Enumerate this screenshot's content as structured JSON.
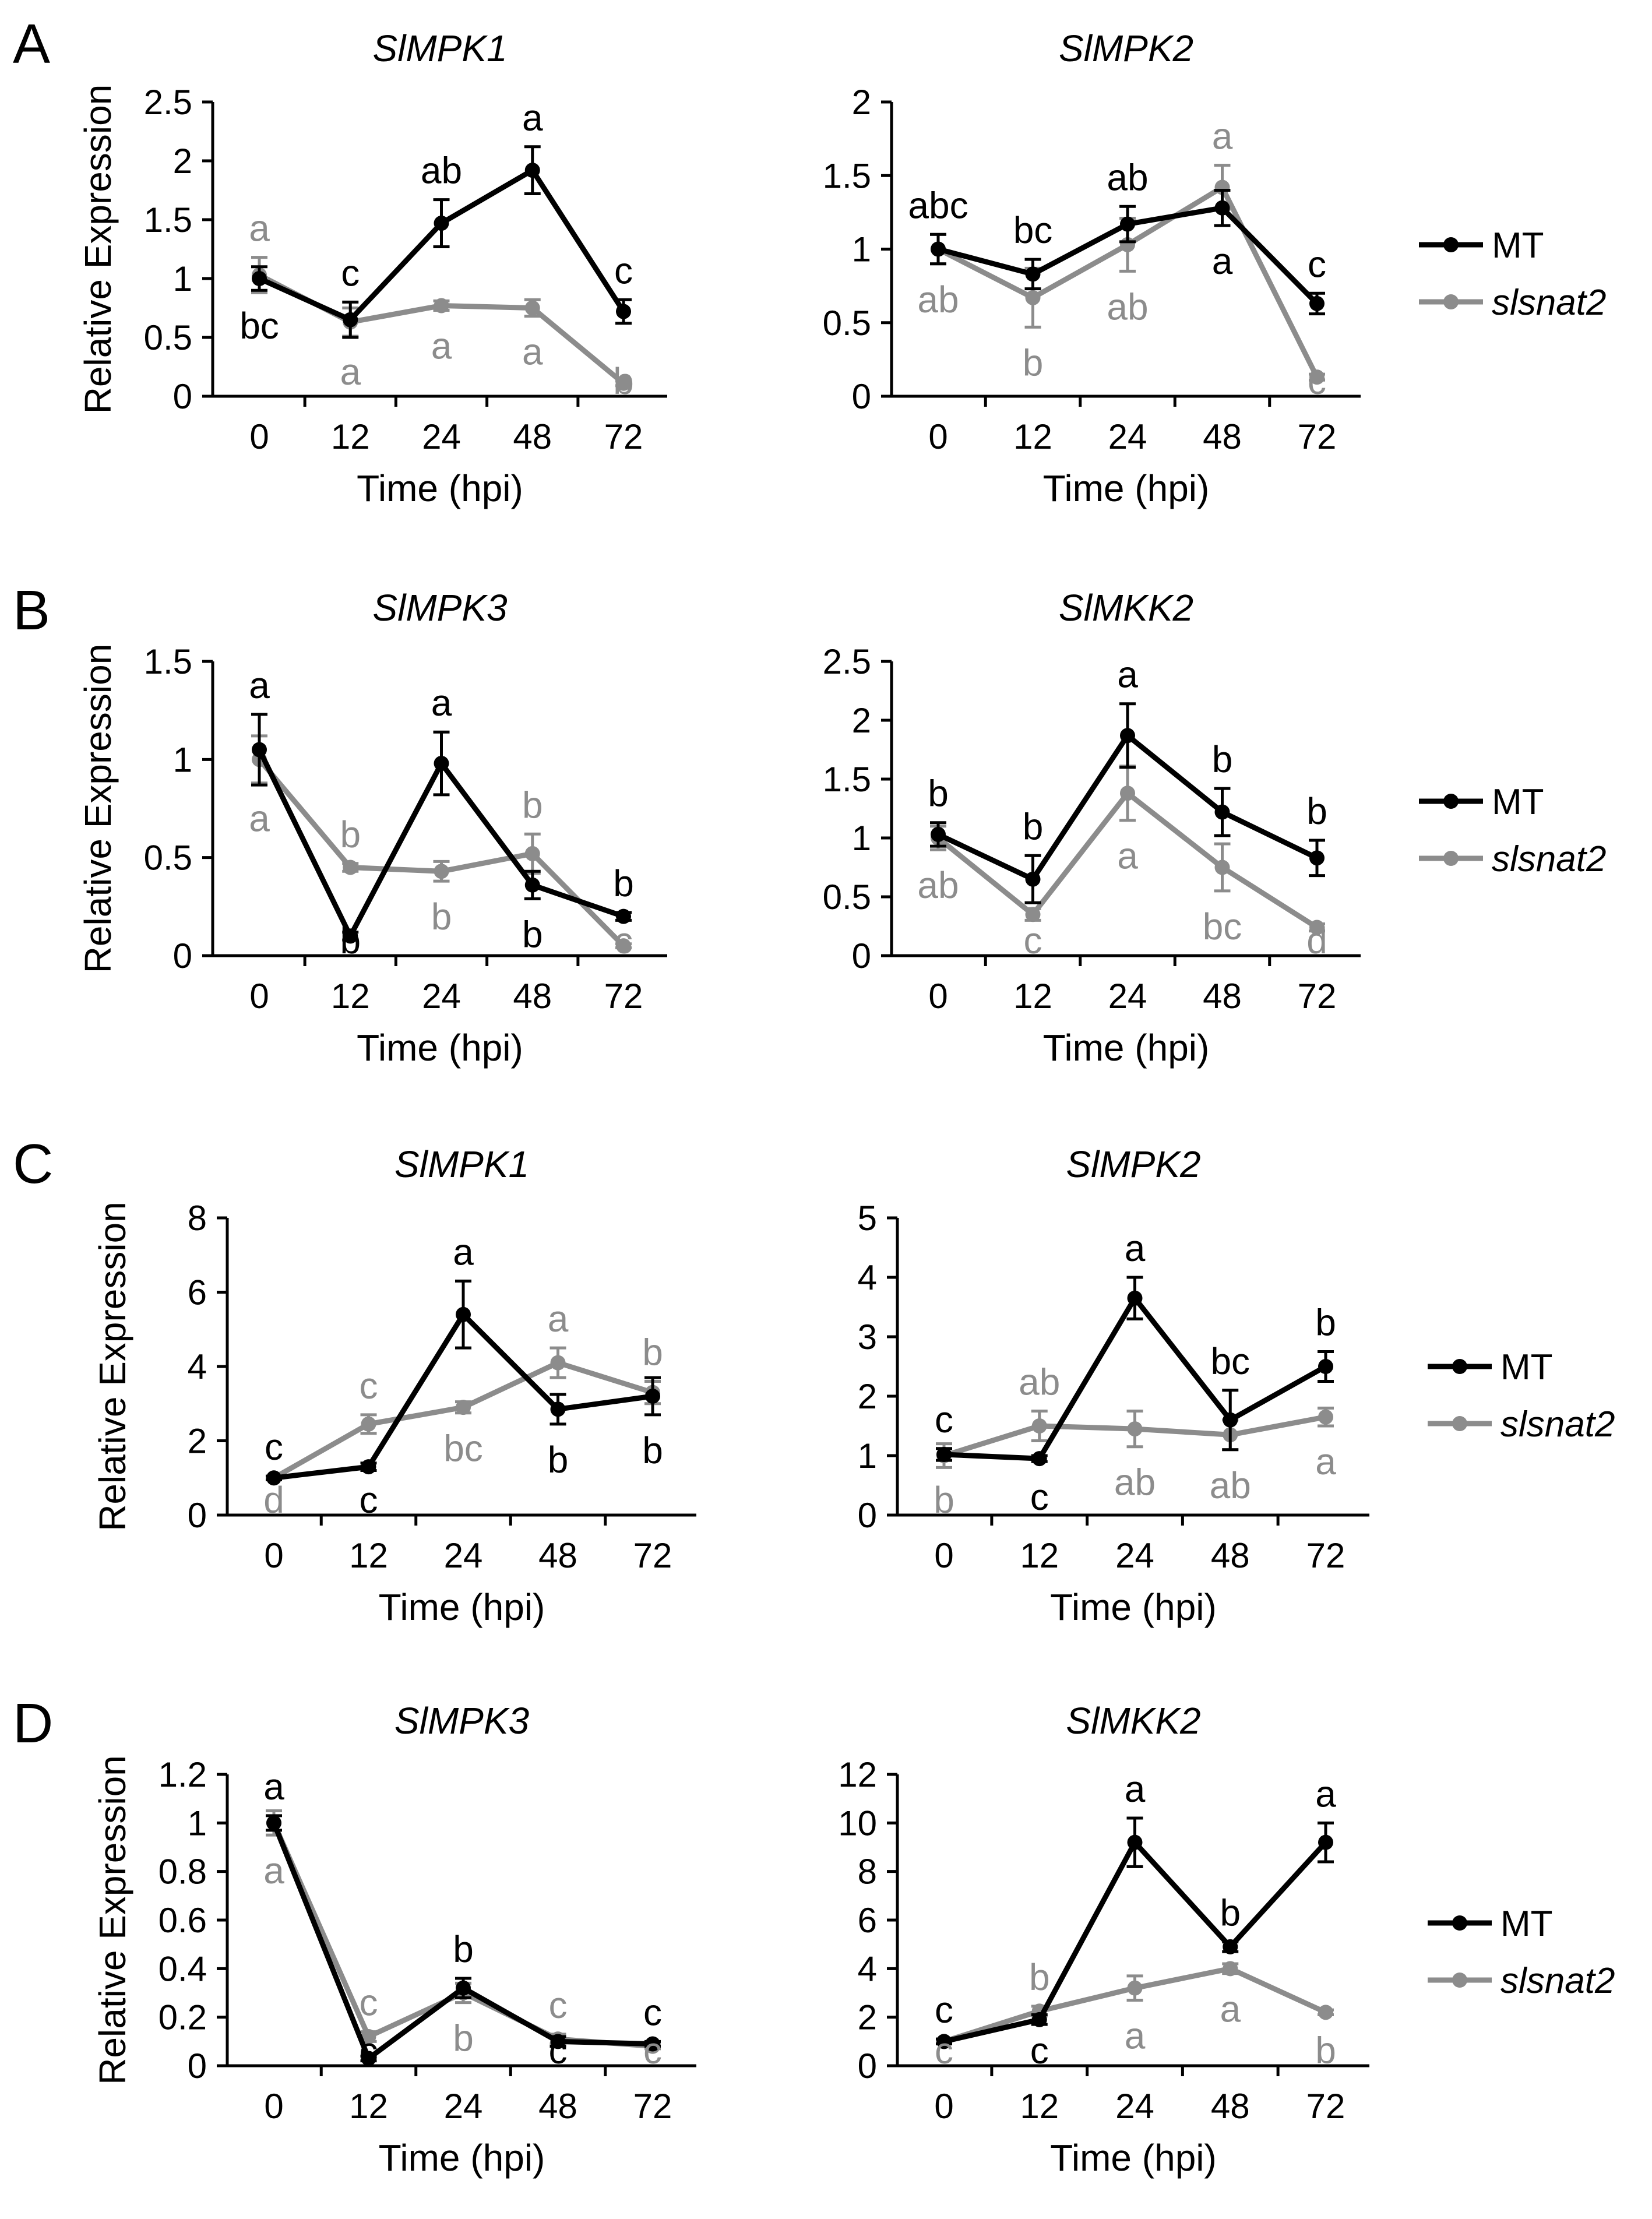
{
  "colors": {
    "MT": "#000000",
    "slsnat2": "#8c8c8c"
  },
  "panel_letters": [
    "A",
    "B",
    "C",
    "D"
  ],
  "legend": {
    "MT": "MT",
    "slsnat2": "slsnat2"
  },
  "chart_data": [
    {
      "type": "line",
      "panel": "A",
      "title": "SlMPK1",
      "x": [
        "0",
        "12",
        "24",
        "48",
        "72"
      ],
      "xlabel": "Time (hpi)",
      "ylabel": "Relative Expression",
      "ylim": [
        0,
        2.5
      ],
      "yticks": [
        "0",
        "0.5",
        "1",
        "1.5",
        "2",
        "2.5"
      ],
      "series": [
        {
          "name": "MT",
          "values": [
            1.0,
            0.65,
            1.47,
            1.92,
            0.72
          ],
          "errors": [
            0.1,
            0.15,
            0.2,
            0.2,
            0.1
          ],
          "labels": [
            "bc",
            "c",
            "ab",
            "a",
            "c"
          ]
        },
        {
          "name": "slsnat2",
          "values": [
            1.03,
            0.63,
            0.77,
            0.75,
            0.11
          ],
          "errors": [
            0.15,
            0.12,
            0.04,
            0.07,
            0.02
          ],
          "labels": [
            "a",
            "a",
            "a",
            "a",
            "b"
          ]
        }
      ]
    },
    {
      "type": "line",
      "panel": "A",
      "title": "SlMPK2",
      "x": [
        "0",
        "12",
        "24",
        "48",
        "72"
      ],
      "xlabel": "Time (hpi)",
      "ylabel": "",
      "ylim": [
        0,
        2
      ],
      "yticks": [
        "0",
        "0.5",
        "1",
        "1.5",
        "2"
      ],
      "series": [
        {
          "name": "MT",
          "values": [
            1.0,
            0.83,
            1.17,
            1.28,
            0.63
          ],
          "errors": [
            0.1,
            0.1,
            0.12,
            0.12,
            0.07
          ],
          "labels": [
            "abc",
            "bc",
            "ab",
            "a",
            "c"
          ]
        },
        {
          "name": "slsnat2",
          "values": [
            1.0,
            0.67,
            1.03,
            1.42,
            0.13
          ],
          "errors": [
            0.1,
            0.2,
            0.18,
            0.15,
            0.02
          ],
          "labels": [
            "ab",
            "b",
            "ab",
            "a",
            "c"
          ]
        }
      ]
    },
    {
      "type": "line",
      "panel": "B",
      "title": "SlMPK3",
      "x": [
        "0",
        "12",
        "24",
        "48",
        "72"
      ],
      "xlabel": "Time (hpi)",
      "ylabel": "Relative Expression",
      "ylim": [
        0,
        1.5
      ],
      "yticks": [
        "0",
        "0.5",
        "1",
        "1.5"
      ],
      "series": [
        {
          "name": "MT",
          "values": [
            1.05,
            0.1,
            0.98,
            0.36,
            0.2
          ],
          "errors": [
            0.18,
            0.02,
            0.16,
            0.07,
            0.02
          ],
          "labels": [
            "a",
            "b",
            "a",
            "b",
            "b"
          ]
        },
        {
          "name": "slsnat2",
          "values": [
            1.0,
            0.45,
            0.43,
            0.52,
            0.05
          ],
          "errors": [
            0.12,
            0.02,
            0.05,
            0.1,
            0.01
          ],
          "labels": [
            "a",
            "b",
            "b",
            "b",
            "c"
          ]
        }
      ]
    },
    {
      "type": "line",
      "panel": "B",
      "title": "SlMKK2",
      "x": [
        "0",
        "12",
        "24",
        "48",
        "72"
      ],
      "xlabel": "Time (hpi)",
      "ylabel": "",
      "ylim": [
        0,
        2.5
      ],
      "yticks": [
        "0",
        "0.5",
        "1",
        "1.5",
        "2",
        "2.5"
      ],
      "series": [
        {
          "name": "MT",
          "values": [
            1.03,
            0.65,
            1.87,
            1.22,
            0.83
          ],
          "errors": [
            0.1,
            0.2,
            0.27,
            0.2,
            0.15
          ],
          "labels": [
            "b",
            "b",
            "a",
            "b",
            "b"
          ]
        },
        {
          "name": "slsnat2",
          "values": [
            1.0,
            0.35,
            1.38,
            0.75,
            0.24
          ],
          "errors": [
            0.1,
            0.05,
            0.23,
            0.2,
            0.03
          ],
          "labels": [
            "ab",
            "c",
            "a",
            "bc",
            "d"
          ]
        }
      ]
    },
    {
      "type": "line",
      "panel": "C",
      "title": "SlMPK1",
      "x": [
        "0",
        "12",
        "24",
        "48",
        "72"
      ],
      "xlabel": "Time (hpi)",
      "ylabel": "Relative Expression",
      "ylim": [
        0,
        8
      ],
      "yticks": [
        "0",
        "2",
        "4",
        "6",
        "8"
      ],
      "series": [
        {
          "name": "MT",
          "values": [
            1.0,
            1.3,
            5.4,
            2.85,
            3.2
          ],
          "errors": [
            0.05,
            0.1,
            0.9,
            0.4,
            0.5
          ],
          "labels": [
            "c",
            "c",
            "a",
            "b",
            "b"
          ]
        },
        {
          "name": "slsnat2",
          "values": [
            1.0,
            2.45,
            2.9,
            4.1,
            3.3
          ],
          "errors": [
            0.05,
            0.25,
            0.15,
            0.4,
            0.3
          ],
          "labels": [
            "d",
            "c",
            "bc",
            "a",
            "b"
          ]
        }
      ]
    },
    {
      "type": "line",
      "panel": "C",
      "title": "SlMPK2",
      "x": [
        "0",
        "12",
        "24",
        "48",
        "72"
      ],
      "xlabel": "Time (hpi)",
      "ylabel": "",
      "ylim": [
        0,
        5
      ],
      "yticks": [
        "0",
        "1",
        "2",
        "3",
        "4",
        "5"
      ],
      "series": [
        {
          "name": "MT",
          "values": [
            1.02,
            0.95,
            3.65,
            1.6,
            2.5
          ],
          "errors": [
            0.1,
            0.05,
            0.35,
            0.5,
            0.25
          ],
          "labels": [
            "c",
            "c",
            "a",
            "bc",
            "b"
          ]
        },
        {
          "name": "slsnat2",
          "values": [
            1.0,
            1.5,
            1.45,
            1.35,
            1.65
          ],
          "errors": [
            0.2,
            0.25,
            0.3,
            0.25,
            0.15
          ],
          "labels": [
            "b",
            "ab",
            "ab",
            "ab",
            "a"
          ]
        }
      ]
    },
    {
      "type": "line",
      "panel": "D",
      "title": "SlMPK3",
      "x": [
        "0",
        "12",
        "24",
        "48",
        "72"
      ],
      "xlabel": "Time (hpi)",
      "ylabel": "Relative Expression",
      "ylim": [
        0,
        1.2
      ],
      "yticks": [
        "0",
        "0.2",
        "0.4",
        "0.6",
        "0.8",
        "1",
        "1.2"
      ],
      "series": [
        {
          "name": "MT",
          "values": [
            1.0,
            0.03,
            0.32,
            0.1,
            0.09
          ],
          "errors": [
            0.03,
            0.01,
            0.04,
            0.02,
            0.01
          ],
          "labels": [
            "a",
            "c",
            "b",
            "c",
            "c"
          ]
        },
        {
          "name": "slsnat2",
          "values": [
            1.0,
            0.12,
            0.3,
            0.11,
            0.08
          ],
          "errors": [
            0.05,
            0.02,
            0.04,
            0.02,
            0.01
          ],
          "labels": [
            "a",
            "c",
            "b",
            "c",
            "c"
          ]
        }
      ]
    },
    {
      "type": "line",
      "panel": "D",
      "title": "SlMKK2",
      "x": [
        "0",
        "12",
        "24",
        "48",
        "72"
      ],
      "xlabel": "Time (hpi)",
      "ylabel": "",
      "ylim": [
        0,
        12
      ],
      "yticks": [
        "0",
        "2",
        "4",
        "6",
        "8",
        "10",
        "12"
      ],
      "series": [
        {
          "name": "MT",
          "values": [
            1.0,
            1.9,
            9.2,
            4.9,
            9.2
          ],
          "errors": [
            0.1,
            0.2,
            1.0,
            0.2,
            0.8
          ],
          "labels": [
            "c",
            "c",
            "a",
            "b",
            "a"
          ]
        },
        {
          "name": "slsnat2",
          "values": [
            1.0,
            2.25,
            3.2,
            4.0,
            2.2
          ],
          "errors": [
            0.1,
            0.2,
            0.5,
            0.2,
            0.1
          ],
          "labels": [
            "c",
            "b",
            "a",
            "a",
            "b"
          ]
        }
      ]
    }
  ]
}
